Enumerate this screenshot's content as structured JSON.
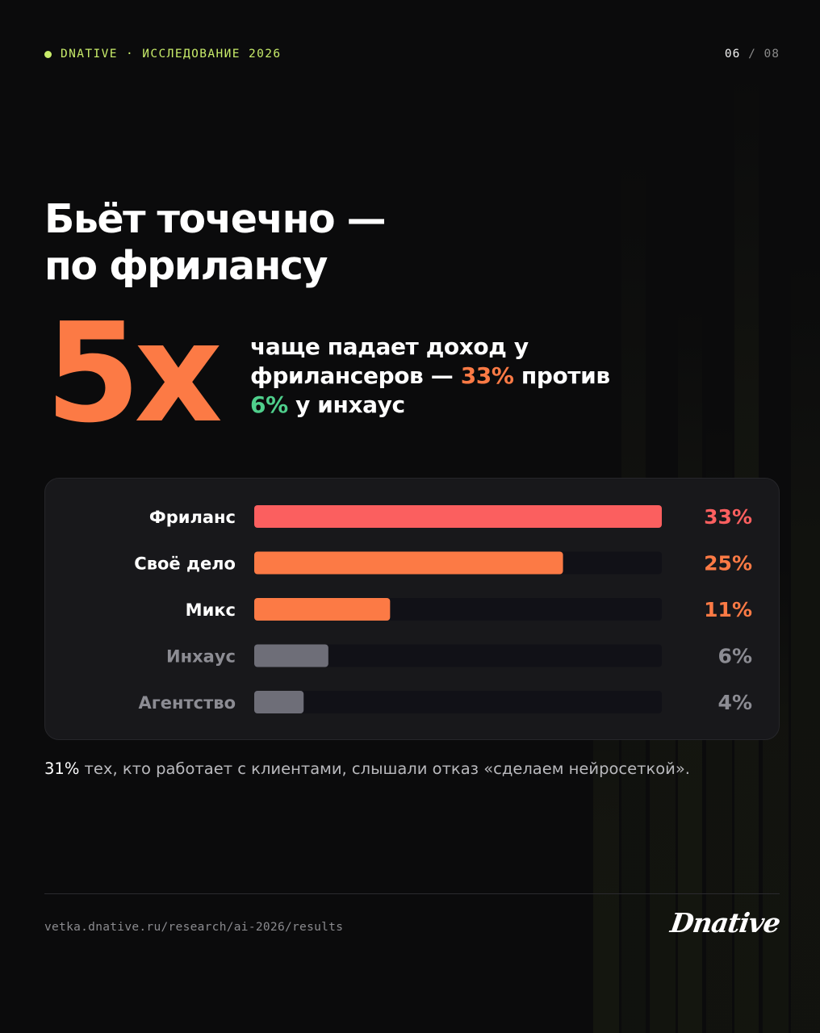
{
  "header": {
    "brand": "DNATIVE · ИССЛЕДОВАНИЕ 2026",
    "page_current": "06",
    "page_separator": "/",
    "page_total": "08"
  },
  "headline": {
    "line1": "Бьёт точечно —",
    "line2": "по фрилансу"
  },
  "stat": {
    "value": "5x",
    "text_part1": "чаще падает доход у фрилансеров —",
    "highlight1": "33%",
    "text_part2": "против",
    "highlight2": "6%",
    "text_part3": "у инхаус"
  },
  "chart_data": {
    "type": "bar",
    "orientation": "horizontal",
    "categories": [
      "Фриланс",
      "Своё дело",
      "Микс",
      "Инхаус",
      "Агентство"
    ],
    "values": [
      33,
      25,
      11,
      6,
      4
    ],
    "value_labels": [
      "33%",
      "25%",
      "11%",
      "6%",
      "4%"
    ],
    "xlim": [
      0,
      33
    ],
    "colors": [
      "#fb5f5f",
      "#fc7a45",
      "#fc7a45",
      "#6e6e78",
      "#6e6e78"
    ],
    "label_colors": [
      "#ffffff",
      "#ffffff",
      "#ffffff",
      "#8c8c93",
      "#8c8c93"
    ],
    "value_colors": [
      "#fb5f5f",
      "#fc7a45",
      "#fc7a45",
      "#8c8c93",
      "#8c8c93"
    ],
    "track_color": "#111117",
    "grid": false
  },
  "note": {
    "strong": "31%",
    "text": "тех, кто работает с клиентами, слышали отказ «сделаем нейросеткой»."
  },
  "footer": {
    "url": "vetka.dnative.ru/research/ai-2026/results",
    "logo": "Dnative"
  },
  "colors": {
    "accent_lime": "#c8ec6a",
    "accent_orange": "#fc7a45",
    "accent_red": "#fb5f5f",
    "accent_green": "#4fcf8c",
    "background": "#0b0b0c"
  }
}
